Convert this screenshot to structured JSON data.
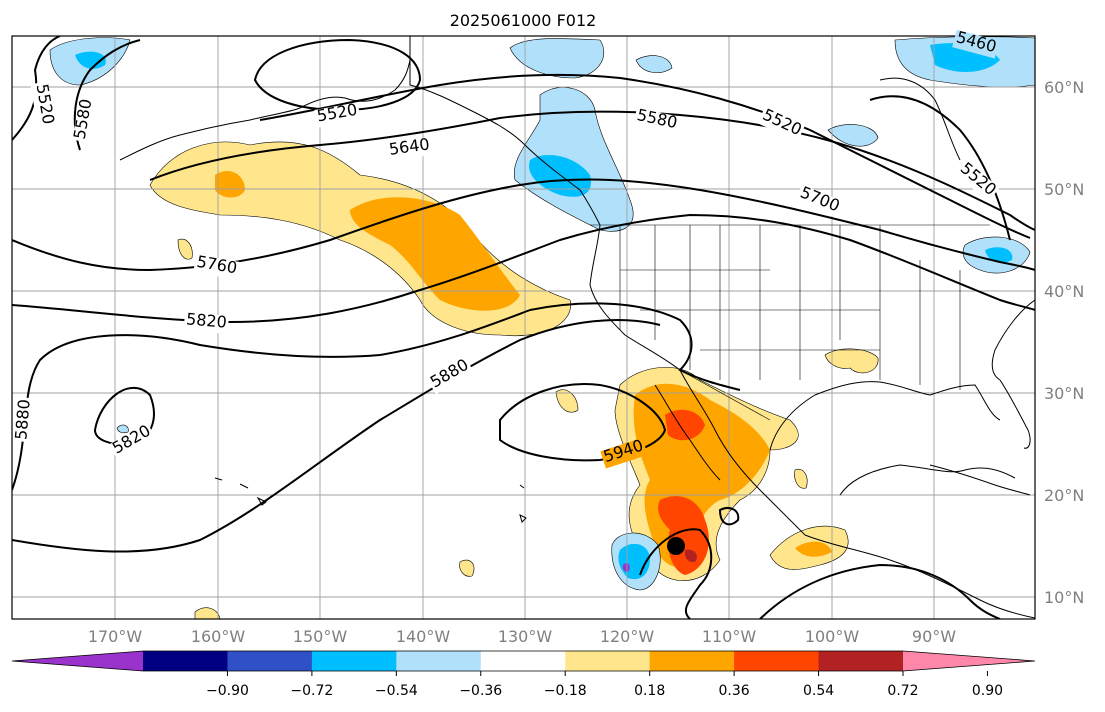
{
  "title": "2025061000 F012",
  "lon_labels": [
    "170°W",
    "160°W",
    "150°W",
    "140°W",
    "130°W",
    "120°W",
    "110°W",
    "100°W",
    "90°W"
  ],
  "lat_labels": [
    "60°N",
    "50°N",
    "40°N",
    "30°N",
    "20°N",
    "10°N"
  ],
  "contour_labels": [
    "5460",
    "5520",
    "5520",
    "5520",
    "5520",
    "5580",
    "5580",
    "5640",
    "5700",
    "5760",
    "5820",
    "5820",
    "5880",
    "5880",
    "5940"
  ],
  "colorbar": {
    "tick_labels": [
      "−0.90",
      "−0.72",
      "−0.54",
      "−0.36",
      "−0.18",
      "0.18",
      "0.36",
      "0.54",
      "0.72",
      "0.90"
    ],
    "colors": [
      "#9933cc",
      "#000080",
      "#3050c8",
      "#00bfff",
      "#b0e0fa",
      "#ffffff",
      "#ffe68c",
      "#ffa500",
      "#ff4500",
      "#b22222",
      "#ff88aa"
    ]
  },
  "marker": {
    "label": "storm-center"
  }
}
